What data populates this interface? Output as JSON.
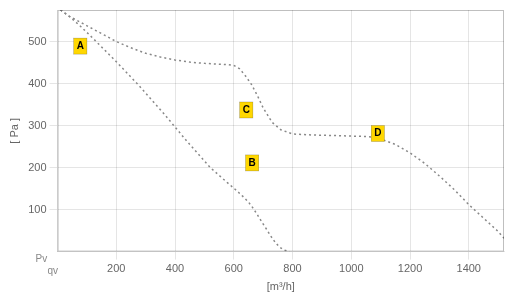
{
  "chart_data": {
    "type": "line",
    "xlabel": "[m³/h]",
    "ylabel": "[ Pa ]",
    "corner_labels": [
      "Pv",
      "qv"
    ],
    "xlim": [
      0,
      1520
    ],
    "ylim": [
      0,
      575
    ],
    "xticks": [
      200,
      400,
      600,
      800,
      1000,
      1200,
      1400
    ],
    "yticks": [
      100,
      200,
      300,
      400,
      500
    ],
    "grid": true,
    "series": [
      {
        "color": "#888888",
        "line_style": "dotted",
        "x": [
          10,
          40,
          80,
          120,
          160,
          200,
          250,
          300,
          350,
          400,
          450,
          500,
          550,
          580,
          600,
          620,
          640,
          660,
          680,
          700,
          730,
          760,
          800,
          850,
          900,
          950,
          1000,
          1050,
          1080,
          1100,
          1150,
          1200,
          1250,
          1300,
          1350,
          1400,
          1450,
          1500,
          1520
        ],
        "values": [
          575,
          560,
          545,
          530,
          515,
          500,
          485,
          472,
          463,
          456,
          451,
          448,
          446,
          445,
          443,
          435,
          418,
          398,
          372,
          342,
          308,
          290,
          280,
          278,
          277,
          276,
          275,
          274,
          272,
          268,
          255,
          235,
          210,
          180,
          148,
          112,
          80,
          48,
          32
        ]
      },
      {
        "color": "#888888",
        "line_style": "dotted",
        "x": [
          10,
          40,
          80,
          120,
          160,
          200,
          280,
          360,
          440,
          520,
          580,
          610,
          630,
          650,
          665,
          680,
          695,
          710,
          725,
          740,
          755,
          770,
          790
        ],
        "values": [
          575,
          560,
          535,
          508,
          480,
          452,
          393,
          330,
          263,
          200,
          163,
          145,
          132,
          118,
          104,
          88,
          71,
          55,
          38,
          23,
          11,
          4,
          0
        ]
      }
    ],
    "annotations": [
      {
        "text": "A",
        "x": 55,
        "y": 470,
        "color": "#FFD700"
      },
      {
        "text": "B",
        "x": 640,
        "y": 192,
        "color": "#FFD700"
      },
      {
        "text": "C",
        "x": 620,
        "y": 318,
        "color": "#FFD700"
      },
      {
        "text": "D",
        "x": 1068,
        "y": 262,
        "color": "#FFD700"
      }
    ]
  }
}
